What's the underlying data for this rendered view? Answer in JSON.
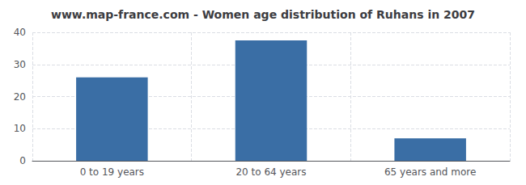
{
  "chart_data": {
    "type": "bar",
    "title": "www.map-france.com - Women age distribution of Ruhans in 2007",
    "categories": [
      "0 to 19 years",
      "20 to 64 years",
      "65 years and more"
    ],
    "values": [
      26,
      37.5,
      7
    ],
    "color": "#3a6ea5",
    "ylim": [
      0,
      40
    ],
    "yticks": [
      0,
      10,
      20,
      30,
      40
    ],
    "grid": true
  }
}
